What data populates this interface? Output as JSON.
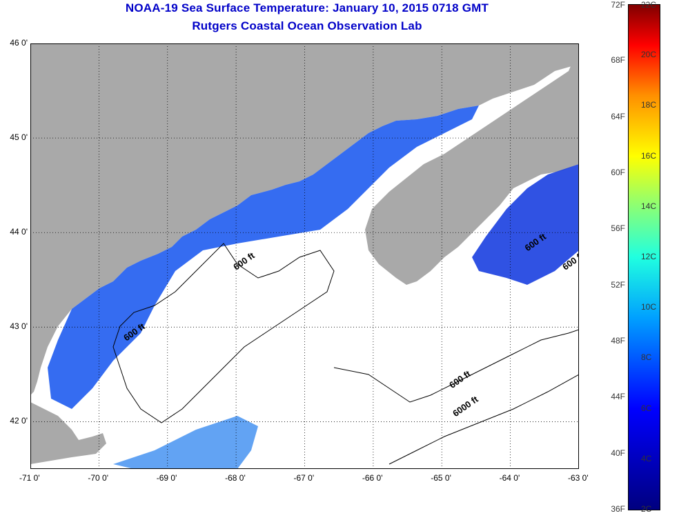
{
  "title": {
    "line1": "NOAA-19 Sea Surface Temperature:  January 10, 2015 0718 GMT",
    "line2": "Rutgers Coastal Ocean Observation Lab"
  },
  "colors": {
    "land": "#a9a9a9",
    "title": "#0000c8",
    "no_data": "#ffffff"
  },
  "map": {
    "lon_range": [
      -71,
      -63
    ],
    "lat_range": [
      41.5,
      46
    ],
    "lat_labels": [
      "46 0'",
      "45 0'",
      "44 0'",
      "43 0'",
      "42 0'"
    ],
    "lon_labels": [
      "-71 0'",
      "-70 0'",
      "-69 0'",
      "-68 0'",
      "-67 0'",
      "-66 0'",
      "-65 0'",
      "-64 0'",
      "-63 0'"
    ],
    "contour_labels": [
      {
        "text": "600 ft",
        "lon": -68.0,
        "lat": 43.6
      },
      {
        "text": "600 ft",
        "lon": -69.6,
        "lat": 42.85
      },
      {
        "text": "600 ft",
        "lon": -63.75,
        "lat": 43.8
      },
      {
        "text": "600 ft",
        "lon": -63.2,
        "lat": 43.6
      },
      {
        "text": "600 ft",
        "lon": -64.85,
        "lat": 42.35
      },
      {
        "text": "6000 ft",
        "lon": -64.8,
        "lat": 42.05
      }
    ]
  },
  "colorbar": {
    "left_labels": [
      "72F",
      "68F",
      "64F",
      "60F",
      "56F",
      "52F",
      "48F",
      "44F",
      "40F",
      "36F"
    ],
    "right_labels": [
      "22C",
      "20C",
      "18C",
      "16C",
      "14C",
      "12C",
      "10C",
      "8C",
      "6C",
      "4C",
      "2C"
    ],
    "f_range": [
      36,
      72
    ],
    "c_range": [
      2,
      22
    ]
  }
}
